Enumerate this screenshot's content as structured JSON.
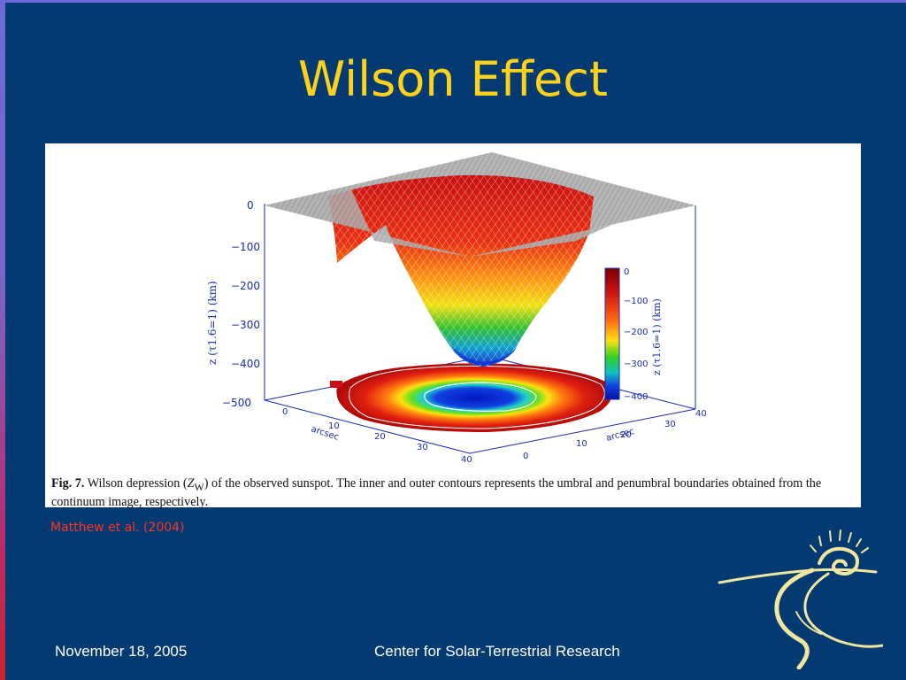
{
  "slide": {
    "title": "Wilson Effect",
    "citation": "Matthew et al. (2004)",
    "footer_date": "November 18, 2005",
    "footer_center": "Center for Solar-Terrestrial Research"
  },
  "figure": {
    "caption_label": "Fig. 7.",
    "caption_part1": " Wilson depression (",
    "caption_symbol": "Z",
    "caption_subscript": "W",
    "caption_part2": ") of the observed sunspot. The inner and outer contours represents the umbral and penumbral boundaries obtained from the continuum image, respectively.",
    "z_axis_label": "z (τ1.6=1) (km)",
    "z_ticks": [
      "0",
      "−100",
      "−200",
      "−300",
      "−400",
      "−500"
    ],
    "colorbar_label": "z (τ1.6=1) (km)",
    "colorbar_ticks": [
      "0",
      "−100",
      "−200",
      "−300",
      "−400"
    ],
    "x_ticks": [
      "0",
      "10",
      "20",
      "30",
      "40"
    ],
    "y_ticks": [
      "0",
      "10",
      "20",
      "30",
      "40"
    ],
    "x_axis_label": "arcsec",
    "y_axis_label": "arcsec"
  },
  "colors": {
    "background": "#033a72",
    "title": "#ffd21a",
    "citation": "#ff3322",
    "axis_blue": "#1a2bb0"
  },
  "logo": {
    "icon": "sun-road-logo-icon"
  }
}
